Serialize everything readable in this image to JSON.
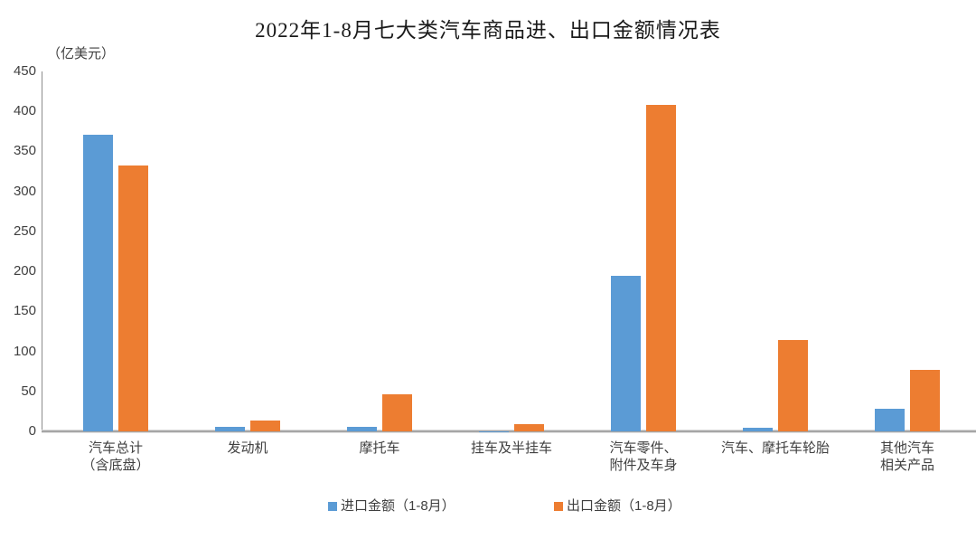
{
  "page": {
    "title": "2022年1-8月七大类汽车商品进、出口金额情况表",
    "unit_label": "（亿美元）"
  },
  "colors": {
    "import_series": "#5B9BD5",
    "export_series": "#ED7D31",
    "axis_line": "#8c8c8c",
    "baseline": "#a6a6a6",
    "text": "#404040"
  },
  "chart_data": {
    "type": "bar",
    "title": "2022年1-8月七大类汽车商品进、出口金额情况表",
    "xlabel": "",
    "ylabel": "（亿美元）",
    "ylim": [
      0,
      450
    ],
    "ytick_step": 50,
    "yticks": [
      0,
      50,
      100,
      150,
      200,
      250,
      300,
      350,
      400,
      450
    ],
    "grid": false,
    "legend_position": "bottom",
    "categories": [
      "汽车总计\n（含底盘）",
      "发动机",
      "摩托车",
      "挂车及半挂车",
      "汽车零件、\n附件及车身",
      "汽车、摩托车轮胎",
      "其他汽车\n相关产品"
    ],
    "series": [
      {
        "name": "进口金额（1-8月）",
        "color": "#5B9BD5",
        "values": [
          371,
          6,
          6,
          0.4,
          195,
          4,
          28
        ]
      },
      {
        "name": "出口金额（1-8月）",
        "color": "#ED7D31",
        "values": [
          332,
          14,
          46,
          9,
          408,
          114,
          77
        ]
      }
    ]
  }
}
